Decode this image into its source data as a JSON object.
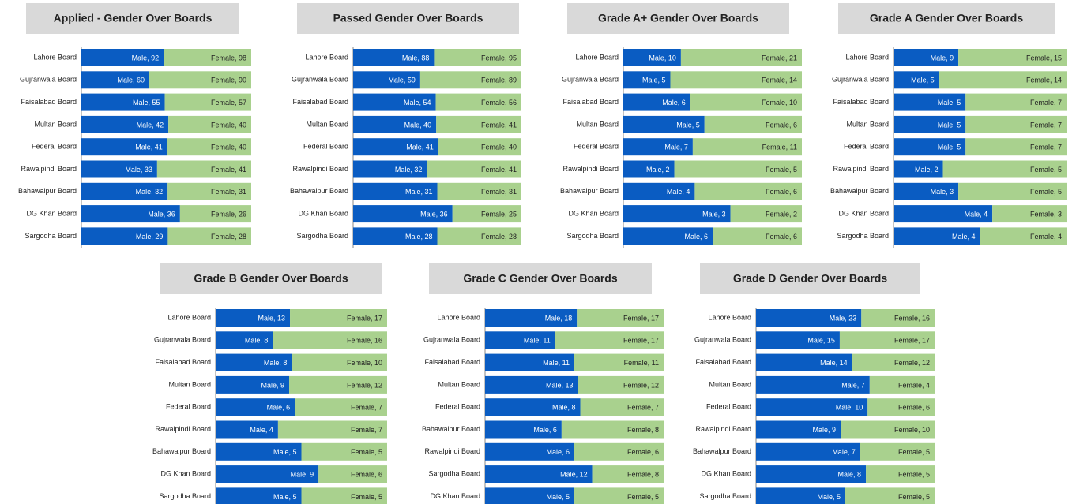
{
  "chart_data": [
    {
      "type": "bar",
      "stacked": "percent",
      "orientation": "horizontal",
      "title": "Applied - Gender Over Boards",
      "categories": [
        "Lahore Board",
        "Gujranwala Board",
        "Faisalabad Board",
        "Multan Board",
        "Federal Board",
        "Rawalpindi Board",
        "Bahawalpur Board",
        "DG Khan Board",
        "Sargodha Board"
      ],
      "series": [
        {
          "name": "Male",
          "color": "#0a5cc2",
          "values": [
            92,
            60,
            55,
            42,
            41,
            33,
            32,
            36,
            29
          ],
          "value_labels": [
            "Male, 92",
            "Male, 60",
            "Male, 55",
            "Male, 42",
            "Male, 41",
            "Male, 33",
            "Male, 32",
            "Male, 36",
            "Male, 29"
          ]
        },
        {
          "name": "Female",
          "color": "#a9d18e",
          "values": [
            98,
            90,
            57,
            40,
            40,
            41,
            31,
            26,
            28
          ],
          "value_labels": [
            "Female, 98",
            "Female, 90",
            "Female, 57",
            "Female, 40",
            "Female, 40",
            "Female, 41",
            "Female, 31",
            "Female, 26",
            "Female, 28"
          ]
        }
      ]
    },
    {
      "type": "bar",
      "stacked": "percent",
      "orientation": "horizontal",
      "title": "Passed Gender Over Boards",
      "categories": [
        "Lahore Board",
        "Gujranwala Board",
        "Faisalabad Board",
        "Multan Board",
        "Federal Board",
        "Rawalpindi Board",
        "Bahawalpur Board",
        "DG Khan Board",
        "Sargodha Board"
      ],
      "series": [
        {
          "name": "Male",
          "color": "#0a5cc2",
          "values": [
            88,
            59,
            54,
            40,
            41,
            32,
            31,
            36,
            28
          ],
          "value_labels": [
            "Male, 88",
            "Male, 59",
            "Male, 54",
            "Male, 40",
            "Male, 41",
            "Male, 32",
            "Male, 31",
            "Male, 36",
            "Male, 28"
          ]
        },
        {
          "name": "Female",
          "color": "#a9d18e",
          "values": [
            95,
            89,
            56,
            41,
            40,
            41,
            31,
            25,
            28
          ],
          "value_labels": [
            "Female, 95",
            "Female, 89",
            "Female, 56",
            "Female, 41",
            "Female, 40",
            "Female, 41",
            "Female, 31",
            "Female, 25",
            "Female, 28"
          ]
        }
      ]
    },
    {
      "type": "bar",
      "stacked": "percent",
      "orientation": "horizontal",
      "title": "Grade A+ Gender Over Boards",
      "categories": [
        "Lahore Board",
        "Gujranwala Board",
        "Faisalabad Board",
        "Multan Board",
        "Federal Board",
        "Rawalpindi Board",
        "Bahawalpur Board",
        "DG Khan Board",
        "Sargodha Board"
      ],
      "series": [
        {
          "name": "Male",
          "color": "#0a5cc2",
          "values": [
            10,
            5,
            6,
            5,
            7,
            2,
            4,
            3,
            6
          ],
          "value_labels": [
            "Male, 10",
            "Male, 5",
            "Male, 6",
            "Male, 5",
            "Male, 7",
            "Male, 2",
            "Male, 4",
            "Male, 3",
            "Male, 6"
          ]
        },
        {
          "name": "Female",
          "color": "#a9d18e",
          "values": [
            21,
            14,
            10,
            6,
            11,
            5,
            6,
            2,
            6
          ],
          "value_labels": [
            "Female, 21",
            "Female, 14",
            "Female, 10",
            "Female, 6",
            "Female, 11",
            "Female, 5",
            "Female, 6",
            "Female, 2",
            "Female, 6"
          ]
        }
      ]
    },
    {
      "type": "bar",
      "stacked": "percent",
      "orientation": "horizontal",
      "title": "Grade A Gender Over Boards",
      "categories": [
        "Lahore Board",
        "Gujranwala Board",
        "Faisalabad Board",
        "Multan Board",
        "Federal Board",
        "Rawalpindi Board",
        "Bahawalpur Board",
        "DG Khan Board",
        "Sargodha Board"
      ],
      "series": [
        {
          "name": "Male",
          "color": "#0a5cc2",
          "values": [
            9,
            5,
            5,
            5,
            5,
            2,
            3,
            4,
            4
          ],
          "value_labels": [
            "Male, 9",
            "Male, 5",
            "Male, 5",
            "Male, 5",
            "Male, 5",
            "Male, 2",
            "Male, 3",
            "Male, 4",
            "Male, 4"
          ]
        },
        {
          "name": "Female",
          "color": "#a9d18e",
          "values": [
            15,
            14,
            7,
            7,
            7,
            5,
            5,
            3,
            4
          ],
          "value_labels": [
            "Female, 15",
            "Female, 14",
            "Female, 7",
            "Female, 7",
            "Female, 7",
            "Female, 5",
            "Female, 5",
            "Female, 3",
            "Female, 4"
          ]
        }
      ]
    },
    {
      "type": "bar",
      "stacked": "percent",
      "orientation": "horizontal",
      "title": "Grade B Gender Over Boards",
      "categories": [
        "Lahore Board",
        "Gujranwala Board",
        "Faisalabad Board",
        "Multan Board",
        "Federal Board",
        "Rawalpindi Board",
        "Bahawalpur Board",
        "DG Khan Board",
        "Sargodha Board"
      ],
      "series": [
        {
          "name": "Male",
          "color": "#0a5cc2",
          "values": [
            13,
            8,
            8,
            9,
            6,
            4,
            5,
            9,
            5
          ],
          "value_labels": [
            "Male, 13",
            "Male, 8",
            "Male, 8",
            "Male, 9",
            "Male, 6",
            "Male, 4",
            "Male, 5",
            "Male, 9",
            "Male, 5"
          ]
        },
        {
          "name": "Female",
          "color": "#a9d18e",
          "values": [
            17,
            16,
            10,
            12,
            7,
            7,
            5,
            6,
            5
          ],
          "value_labels": [
            "Female, 17",
            "Female, 16",
            "Female, 10",
            "Female, 12",
            "Female, 7",
            "Female, 7",
            "Female, 5",
            "Female, 6",
            "Female, 5"
          ]
        }
      ]
    },
    {
      "type": "bar",
      "stacked": "percent",
      "orientation": "horizontal",
      "title": "Grade C Gender Over Boards",
      "categories": [
        "Lahore Board",
        "Gujranwala Board",
        "Faisalabad Board",
        "Multan Board",
        "Federal Board",
        "Bahawalpur Board",
        "Rawalpindi Board",
        "Sargodha Board",
        "DG Khan Board"
      ],
      "series": [
        {
          "name": "Male",
          "color": "#0a5cc2",
          "values": [
            18,
            11,
            11,
            13,
            8,
            6,
            6,
            12,
            5
          ],
          "value_labels": [
            "Male, 18",
            "Male, 11",
            "Male, 11",
            "Male, 13",
            "Male, 8",
            "Male, 6",
            "Male, 6",
            "Male, 12",
            "Male, 5"
          ]
        },
        {
          "name": "Female",
          "color": "#a9d18e",
          "values": [
            17,
            17,
            11,
            12,
            7,
            8,
            6,
            8,
            5
          ],
          "value_labels": [
            "Female, 17",
            "Female, 17",
            "Female, 11",
            "Female, 12",
            "Female, 7",
            "Female, 8",
            "Female, 6",
            "Female, 8",
            "Female, 5"
          ]
        }
      ]
    },
    {
      "type": "bar",
      "stacked": "percent",
      "orientation": "horizontal",
      "title": "Grade D Gender Over Boards",
      "categories": [
        "Lahore Board",
        "Gujranwala Board",
        "Faisalabad Board",
        "Multan Board",
        "Federal Board",
        "Rawalpindi Board",
        "Bahawalpur Board",
        "DG Khan Board",
        "Sargodha Board"
      ],
      "series": [
        {
          "name": "Male",
          "color": "#0a5cc2",
          "values": [
            23,
            15,
            14,
            7,
            10,
            9,
            7,
            8,
            5
          ],
          "value_labels": [
            "Male, 23",
            "Male, 15",
            "Male, 14",
            "Male, 7",
            "Male, 10",
            "Male, 9",
            "Male, 7",
            "Male, 8",
            "Male, 5"
          ]
        },
        {
          "name": "Female",
          "color": "#a9d18e",
          "values": [
            16,
            17,
            12,
            4,
            6,
            10,
            5,
            5,
            5
          ],
          "value_labels": [
            "Female, 16",
            "Female, 17",
            "Female, 12",
            "Female, 4",
            "Female, 6",
            "Female, 10",
            "Female, 5",
            "Female, 5",
            "Female, 5"
          ]
        }
      ]
    }
  ]
}
